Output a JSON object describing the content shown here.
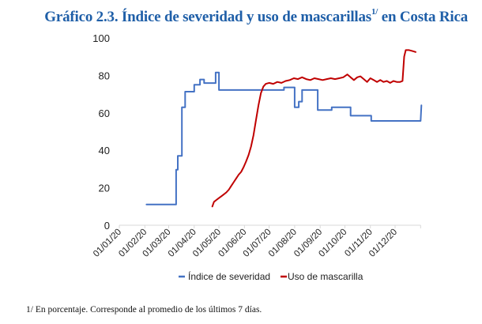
{
  "chart_data": {
    "type": "line",
    "title": "Gráfico 2.3. Índice de severidad y uso de mascarillas",
    "title_superscript": "1/",
    "title_suffix": "en Costa Rica",
    "xlabel": "",
    "ylabel": "",
    "ylim": [
      0,
      100
    ],
    "yticks": [
      "0",
      "20",
      "40",
      "60",
      "80",
      "100"
    ],
    "xticks": [
      "01/01/20",
      "01/02/20",
      "01/03/20",
      "01/04/20",
      "01/05/20",
      "01/06/20",
      "01/07/20",
      "01/08/20",
      "01/09/20",
      "01/10/20",
      "01/11/20",
      "01/12/20"
    ],
    "x_unit": "day of year 2020",
    "xlim": [
      0,
      366
    ],
    "grid": false,
    "legend_position": "bottom",
    "series": [
      {
        "name": "Índice de severidad",
        "color": "#4472c4",
        "step": true,
        "points": [
          [
            33,
            11.1
          ],
          [
            69,
            11.1
          ],
          [
            69,
            29.6
          ],
          [
            71,
            29.6
          ],
          [
            71,
            37.0
          ],
          [
            76,
            37.0
          ],
          [
            76,
            63.0
          ],
          [
            80,
            63.0
          ],
          [
            80,
            71.3
          ],
          [
            91,
            71.3
          ],
          [
            91,
            75.0
          ],
          [
            98,
            75.0
          ],
          [
            98,
            77.8
          ],
          [
            103,
            77.8
          ],
          [
            103,
            75.9
          ],
          [
            117,
            75.9
          ],
          [
            117,
            81.5
          ],
          [
            121,
            81.5
          ],
          [
            121,
            72.2
          ],
          [
            200,
            72.2
          ],
          [
            200,
            73.6
          ],
          [
            213,
            73.6
          ],
          [
            213,
            63.0
          ],
          [
            218,
            63.0
          ],
          [
            218,
            66.0
          ],
          [
            222,
            66.0
          ],
          [
            222,
            72.2
          ],
          [
            241,
            72.2
          ],
          [
            241,
            61.5
          ],
          [
            258,
            61.5
          ],
          [
            258,
            63.0
          ],
          [
            281,
            63.0
          ],
          [
            281,
            58.5
          ],
          [
            306,
            58.5
          ],
          [
            306,
            55.7
          ],
          [
            366,
            55.7
          ],
          [
            367,
            64.0
          ]
        ]
      },
      {
        "name": "Uso de mascarilla",
        "color": "#c00000",
        "step": false,
        "points": [
          [
            113,
            10.0
          ],
          [
            115,
            12.5
          ],
          [
            118,
            13.5
          ],
          [
            121,
            14.5
          ],
          [
            124,
            15.5
          ],
          [
            127,
            16.5
          ],
          [
            130,
            17.5
          ],
          [
            133,
            19.0
          ],
          [
            136,
            21.0
          ],
          [
            139,
            23.0
          ],
          [
            142,
            25.0
          ],
          [
            145,
            27.0
          ],
          [
            148,
            28.5
          ],
          [
            151,
            31.0
          ],
          [
            154,
            34.0
          ],
          [
            157,
            37.5
          ],
          [
            160,
            42.0
          ],
          [
            163,
            48.0
          ],
          [
            166,
            56.0
          ],
          [
            169,
            64.0
          ],
          [
            172,
            70.5
          ],
          [
            175,
            74.0
          ],
          [
            178,
            75.5
          ],
          [
            182,
            76.0
          ],
          [
            187,
            75.5
          ],
          [
            192,
            76.5
          ],
          [
            197,
            76.0
          ],
          [
            202,
            77.0
          ],
          [
            207,
            77.5
          ],
          [
            212,
            78.5
          ],
          [
            217,
            78.0
          ],
          [
            222,
            79.0
          ],
          [
            227,
            78.0
          ],
          [
            232,
            77.5
          ],
          [
            237,
            78.5
          ],
          [
            242,
            78.0
          ],
          [
            247,
            77.5
          ],
          [
            252,
            78.0
          ],
          [
            257,
            78.5
          ],
          [
            262,
            78.0
          ],
          [
            267,
            78.5
          ],
          [
            272,
            79.0
          ],
          [
            277,
            80.5
          ],
          [
            281,
            79.0
          ],
          [
            285,
            77.5
          ],
          [
            289,
            79.0
          ],
          [
            293,
            79.5
          ],
          [
            297,
            78.0
          ],
          [
            301,
            76.5
          ],
          [
            305,
            78.5
          ],
          [
            309,
            77.5
          ],
          [
            313,
            76.5
          ],
          [
            317,
            77.5
          ],
          [
            321,
            76.5
          ],
          [
            325,
            77.0
          ],
          [
            329,
            76.0
          ],
          [
            333,
            77.0
          ],
          [
            337,
            76.5
          ],
          [
            341,
            76.5
          ],
          [
            344,
            77.0
          ],
          [
            346,
            90.0
          ],
          [
            348,
            93.5
          ],
          [
            352,
            93.5
          ],
          [
            356,
            93.0
          ],
          [
            360,
            92.5
          ]
        ]
      }
    ]
  },
  "footnote": "1/ En porcentaje. Corresponde al promedio de los últimos 7 días."
}
